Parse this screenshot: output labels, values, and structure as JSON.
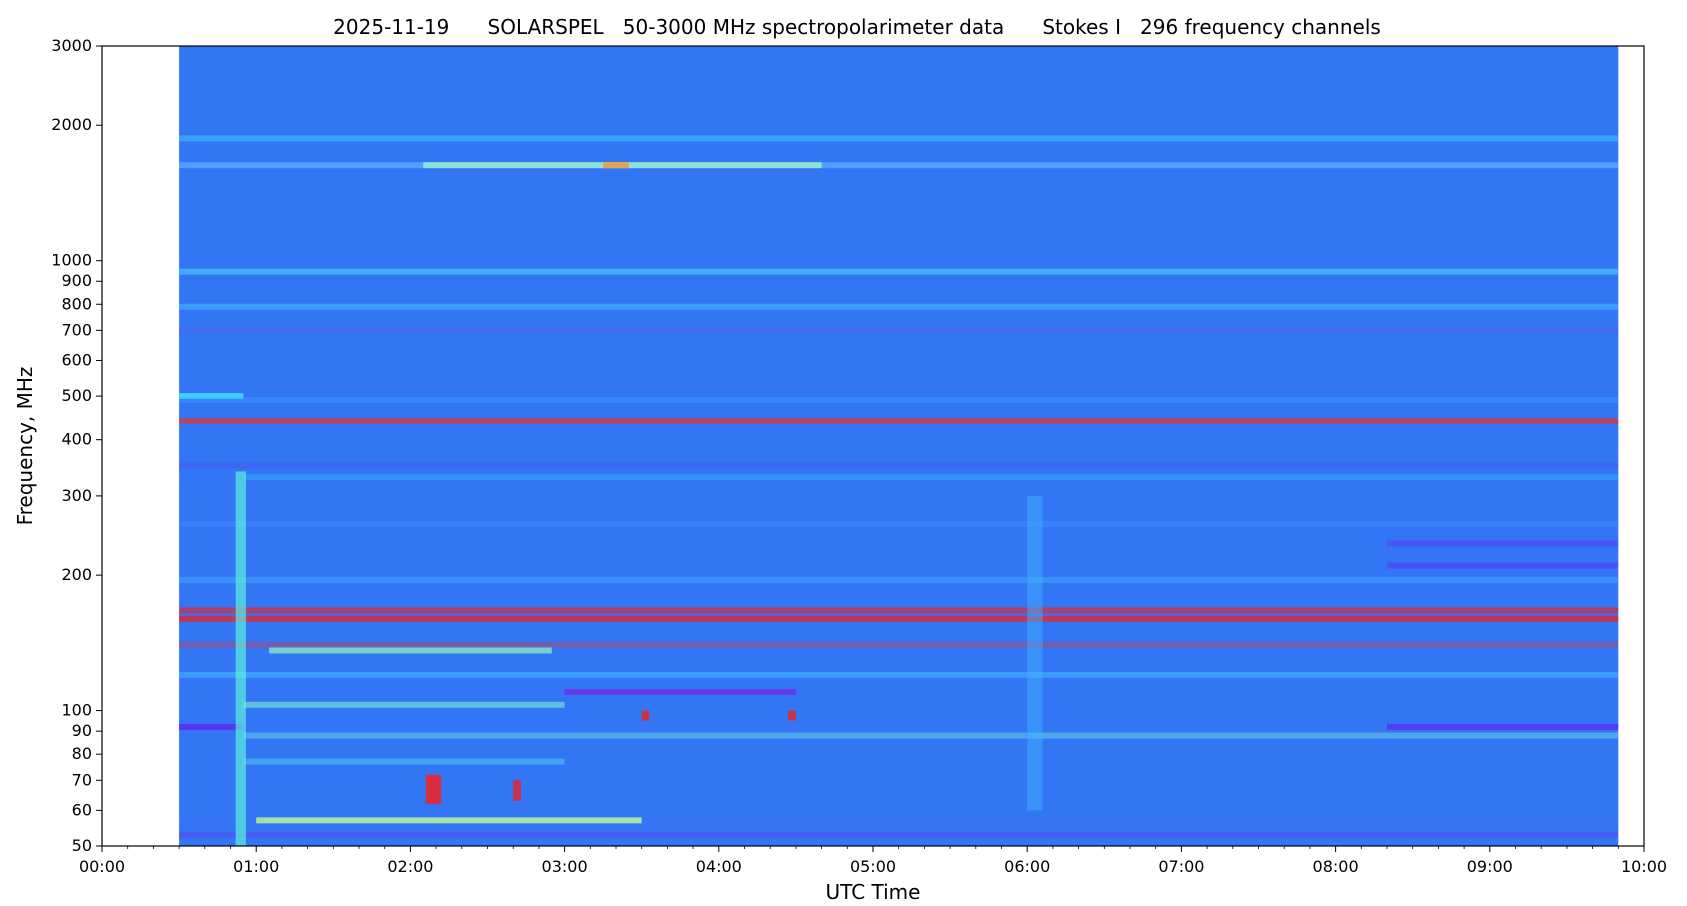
{
  "chart_data": {
    "type": "heatmap",
    "title": "2025-11-19      SOLARSPEL   50-3000 MHz spectropolarimeter data      Stokes I   296 frequency channels",
    "xlabel": "UTC Time",
    "ylabel": "Frequency, MHz",
    "x_scale": "time",
    "y_scale": "log",
    "xlim": [
      "00:00",
      "10:00"
    ],
    "ylim": [
      50,
      3000
    ],
    "data_time_range": [
      "00:30",
      "09:50"
    ],
    "x_ticks": [
      "00:00",
      "01:00",
      "02:00",
      "03:00",
      "04:00",
      "05:00",
      "06:00",
      "07:00",
      "08:00",
      "09:00",
      "10:00"
    ],
    "y_ticks": [
      50,
      60,
      70,
      80,
      90,
      100,
      200,
      300,
      400,
      500,
      600,
      700,
      800,
      900,
      1000,
      2000,
      3000
    ],
    "y_tick_labels": [
      "50",
      "60",
      "70",
      "80",
      "90",
      "100",
      "200",
      "300",
      "400",
      "500",
      "600",
      "700",
      "800",
      "900",
      "1000",
      "2000",
      "3000"
    ],
    "colormap": "jet",
    "background_color": "#3275f5",
    "grid": false,
    "legend": false,
    "features": [
      {
        "kind": "band",
        "freq_mhz": 1870,
        "t0": "00:30",
        "t1": "09:50",
        "color": "#3fc6ff",
        "opacity": 0.55
      },
      {
        "kind": "band",
        "freq_mhz": 1630,
        "t0": "00:30",
        "t1": "09:50",
        "color": "#5aa8ff",
        "opacity": 0.8
      },
      {
        "kind": "band",
        "freq_mhz": 1630,
        "t0": "02:05",
        "t1": "04:40",
        "color": "#9cf5c8",
        "opacity": 0.8
      },
      {
        "kind": "band",
        "freq_mhz": 1630,
        "t0": "03:15",
        "t1": "03:25",
        "color": "#f29a3a",
        "opacity": 0.9
      },
      {
        "kind": "band",
        "freq_mhz": 945,
        "t0": "00:30",
        "t1": "09:50",
        "color": "#4ad2ff",
        "opacity": 0.6
      },
      {
        "kind": "band",
        "freq_mhz": 790,
        "t0": "00:30",
        "t1": "09:50",
        "color": "#44c9ff",
        "opacity": 0.5
      },
      {
        "kind": "band",
        "freq_mhz": 700,
        "t0": "00:30",
        "t1": "09:50",
        "color": "#5a5cf0",
        "opacity": 0.4
      },
      {
        "kind": "band",
        "freq_mhz": 500,
        "t0": "00:30",
        "t1": "00:55",
        "color": "#45d8ff",
        "opacity": 0.9
      },
      {
        "kind": "band",
        "freq_mhz": 490,
        "t0": "00:30",
        "t1": "09:50",
        "color": "#3aa6ff",
        "opacity": 0.35
      },
      {
        "kind": "band",
        "freq_mhz": 440,
        "t0": "00:30",
        "t1": "09:50",
        "color": "#e8312a",
        "opacity": 0.65
      },
      {
        "kind": "band",
        "freq_mhz": 350,
        "t0": "00:30",
        "t1": "09:50",
        "color": "#4a58ee",
        "opacity": 0.55
      },
      {
        "kind": "band",
        "freq_mhz": 330,
        "t0": "00:55",
        "t1": "09:50",
        "color": "#3ab6ff",
        "opacity": 0.45
      },
      {
        "kind": "band",
        "freq_mhz": 260,
        "t0": "00:30",
        "t1": "09:50",
        "color": "#3f8cff",
        "opacity": 0.5
      },
      {
        "kind": "band",
        "freq_mhz": 235,
        "t0": "08:20",
        "t1": "09:50",
        "color": "#5a3df5",
        "opacity": 0.55
      },
      {
        "kind": "band",
        "freq_mhz": 210,
        "t0": "08:20",
        "t1": "09:50",
        "color": "#5c3af2",
        "opacity": 0.6
      },
      {
        "kind": "band",
        "freq_mhz": 195,
        "t0": "00:30",
        "t1": "09:50",
        "color": "#40b8ff",
        "opacity": 0.4
      },
      {
        "kind": "band",
        "freq_mhz": 167,
        "t0": "00:30",
        "t1": "09:50",
        "color": "#e8262c",
        "opacity": 0.65
      },
      {
        "kind": "band",
        "freq_mhz": 160,
        "t0": "00:30",
        "t1": "09:50",
        "color": "#e8262c",
        "opacity": 0.8
      },
      {
        "kind": "band",
        "freq_mhz": 140,
        "t0": "00:30",
        "t1": "09:50",
        "color": "#e8342a",
        "opacity": 0.35
      },
      {
        "kind": "band",
        "freq_mhz": 136,
        "t0": "01:05",
        "t1": "02:55",
        "color": "#8ef0c0",
        "opacity": 0.75
      },
      {
        "kind": "band",
        "freq_mhz": 120,
        "t0": "00:30",
        "t1": "09:50",
        "color": "#43c4ff",
        "opacity": 0.5
      },
      {
        "kind": "band",
        "freq_mhz": 110,
        "t0": "03:00",
        "t1": "04:30",
        "color": "#6a34e8",
        "opacity": 0.9
      },
      {
        "kind": "band",
        "freq_mhz": 103,
        "t0": "00:55",
        "t1": "03:00",
        "color": "#7cf0d4",
        "opacity": 0.6
      },
      {
        "kind": "band",
        "freq_mhz": 92,
        "t0": "00:30",
        "t1": "00:55",
        "color": "#5a2ff2",
        "opacity": 0.9
      },
      {
        "kind": "band",
        "freq_mhz": 92,
        "t0": "08:20",
        "t1": "09:50",
        "color": "#5a2ff2",
        "opacity": 0.8
      },
      {
        "kind": "band",
        "freq_mhz": 88,
        "t0": "00:55",
        "t1": "09:50",
        "color": "#6ee6e0",
        "opacity": 0.45
      },
      {
        "kind": "band",
        "freq_mhz": 77,
        "t0": "00:55",
        "t1": "03:00",
        "color": "#58dcf0",
        "opacity": 0.45
      },
      {
        "kind": "band",
        "freq_mhz": 57,
        "t0": "01:00",
        "t1": "03:30",
        "color": "#b8f59a",
        "opacity": 0.85
      },
      {
        "kind": "band",
        "freq_mhz": 53,
        "t0": "00:30",
        "t1": "09:50",
        "color": "#5a44f0",
        "opacity": 0.5
      },
      {
        "kind": "burst",
        "freq_mhz_range": [
          50,
          340
        ],
        "t0": "00:52",
        "t1": "00:56",
        "color": "#5cf0e0",
        "opacity": 0.7
      },
      {
        "kind": "burst",
        "freq_mhz_range": [
          62,
          72
        ],
        "t0": "02:06",
        "t1": "02:12",
        "color": "#e8262c",
        "opacity": 0.9
      },
      {
        "kind": "burst",
        "freq_mhz_range": [
          63,
          70
        ],
        "t0": "02:40",
        "t1": "02:43",
        "color": "#e8262c",
        "opacity": 0.85
      },
      {
        "kind": "burst",
        "freq_mhz_range": [
          95,
          100
        ],
        "t0": "03:30",
        "t1": "03:33",
        "color": "#e8262c",
        "opacity": 0.85
      },
      {
        "kind": "burst",
        "freq_mhz_range": [
          95,
          100
        ],
        "t0": "04:27",
        "t1": "04:30",
        "color": "#e8262c",
        "opacity": 0.85
      },
      {
        "kind": "burst",
        "freq_mhz_range": [
          60,
          300
        ],
        "t0": "06:00",
        "t1": "06:06",
        "color": "#3fb0ff",
        "opacity": 0.5
      }
    ]
  }
}
